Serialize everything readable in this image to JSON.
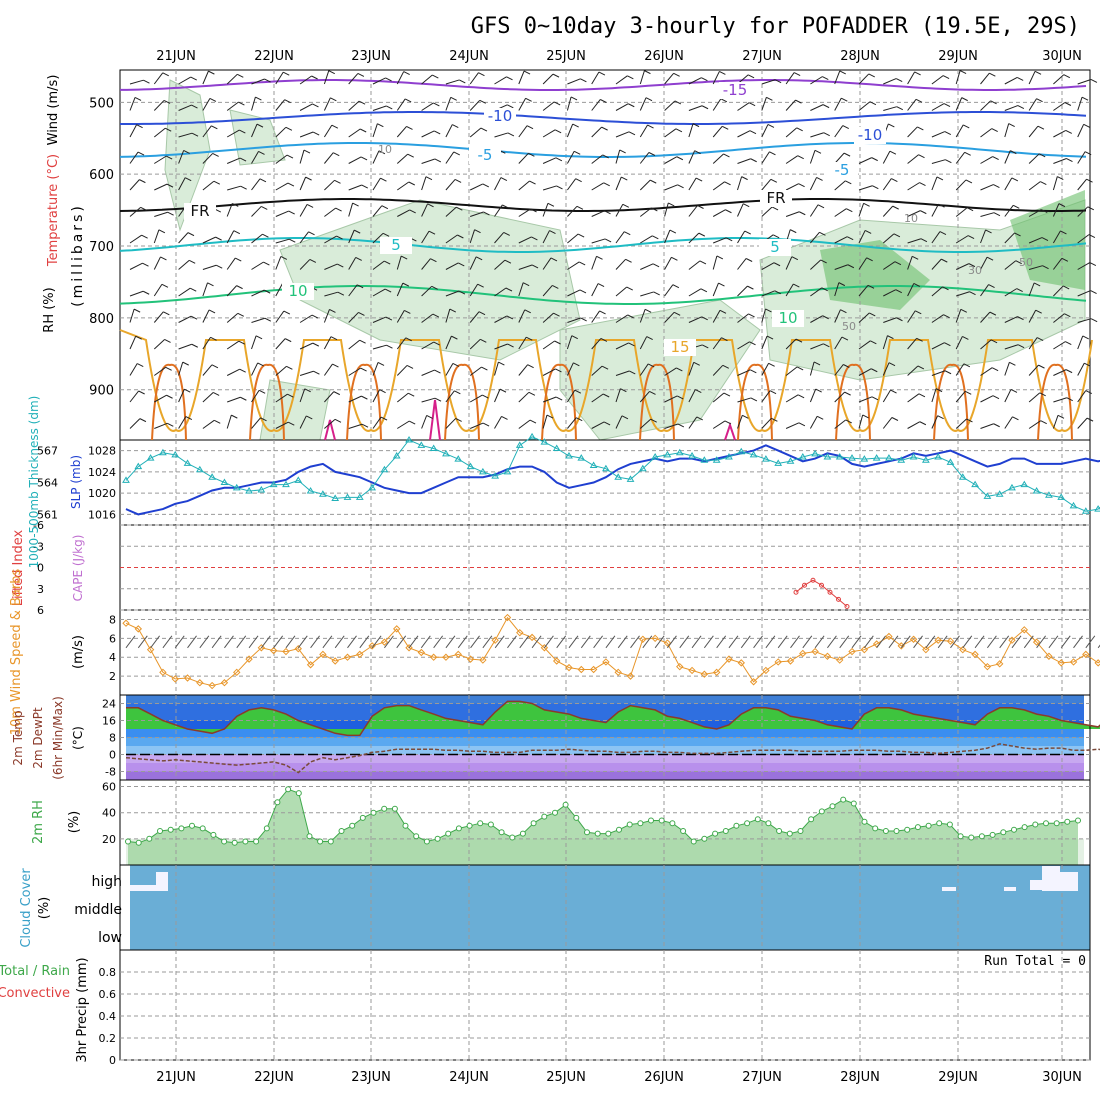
{
  "title": "GFS 0~10day 3-hourly for POFADDER (19.5E, 29S)",
  "dates": [
    "21JUN",
    "22JUN",
    "23JUN",
    "24JUN",
    "25JUN",
    "26JUN",
    "27JUN",
    "28JUN",
    "29JUN",
    "30JUN"
  ],
  "colors": {
    "frame": "#000000",
    "grid": "#9a9a9a",
    "slp": "#1f3fd0",
    "thick": "#21b0b8",
    "cape_li": "#e04040",
    "wind10": "#e8962a",
    "temp_line": "#8b3a2a",
    "dew_line": "#7a4a3a",
    "rh2m": "#3ea84a",
    "cloud_bg": "#6aaed6",
    "rh_shade": "#c9e4c9",
    "rh_dark": "#6dbf6d",
    "t_neg15": "#8f3fcf",
    "t_neg10": "#2c4fd6",
    "t_neg5": "#2a9fe0",
    "t_fr": "#111111",
    "t_5": "#1fbcc4",
    "t_10": "#22c27a",
    "t_15": "#e8a62a",
    "t_20": "#e07020",
    "t_25": "#d6208a"
  },
  "panels": {
    "upper": {
      "ylabel_wind": "Wind (m/s)",
      "ylabel_temp": "Temperature (°C)",
      "ylabel_rh": "RH (%)",
      "ylabel_mb": "(millibars)",
      "ticks": [
        "500",
        "600",
        "700",
        "800",
        "900"
      ],
      "contour_labels": [
        {
          "text": "-15",
          "color_key": "t_neg15"
        },
        {
          "text": "-10",
          "color_key": "t_neg10"
        },
        {
          "text": "-10",
          "color_key": "t_neg10"
        },
        {
          "text": "-5",
          "color_key": "t_neg5"
        },
        {
          "text": "-5",
          "color_key": "t_neg5"
        },
        {
          "text": "FR",
          "color_key": "t_fr"
        },
        {
          "text": "FR",
          "color_key": "t_fr"
        },
        {
          "text": "5",
          "color_key": "t_5"
        },
        {
          "text": "5",
          "color_key": "t_5"
        },
        {
          "text": "10",
          "color_key": "t_10"
        },
        {
          "text": "10",
          "color_key": "t_10"
        },
        {
          "text": "15",
          "color_key": "t_15"
        }
      ],
      "rh_labels": [
        "10",
        "10",
        "30",
        "50",
        "50"
      ]
    },
    "slp": {
      "ylabel_thick": "1000-500mb Thickness (dm)",
      "ylabel_slp": "SLP (mb)",
      "left_ticks": [
        "567",
        "564",
        "561"
      ],
      "right_ticks": [
        "1028",
        "1024",
        "1020",
        "1016"
      ]
    },
    "cape": {
      "ylabel_li": "Lifted Index",
      "ylabel_cape": "CAPE (J/kg)",
      "ticks": [
        "-6",
        "-3",
        "0",
        "3",
        "6"
      ]
    },
    "wind": {
      "ylabel": "10m Wind Speed & Barbs",
      "unit": "(m/s)",
      "ticks": [
        "8",
        "6",
        "4",
        "2"
      ]
    },
    "temp": {
      "ylabel_a": "2m Temp",
      "ylabel_b": "2m DewPt",
      "ylabel_c": "(6hr Min/Max)",
      "unit": "(°C)",
      "ticks": [
        "24",
        "16",
        "8",
        "0",
        "-8"
      ]
    },
    "rh": {
      "ylabel": "2m RH",
      "unit": "(%)",
      "ticks": [
        "60",
        "40",
        "20"
      ]
    },
    "cloud": {
      "ylabel": "Cloud Cover",
      "unit": "(%)",
      "levels": [
        "high",
        "middle",
        "low"
      ]
    },
    "precip": {
      "ylabel_a": "Total / Rain",
      "ylabel_b": "Convective",
      "ylabel_c": "3hr Precip (mm)",
      "run_total": "Run Total = 0",
      "ticks": [
        "0.8",
        "0.6",
        "0.4",
        "0.2",
        "0"
      ]
    }
  },
  "chart_data": [
    {
      "type": "line",
      "title": "SLP (mb) and 1000-500mb Thickness (dm)",
      "x_unit": "3-hourly steps from 20JUN 12Z",
      "series": [
        {
          "name": "SLP (mb)",
          "axis": "right",
          "values": [
            1017,
            1016,
            1016.5,
            1017,
            1018,
            1018.5,
            1019.5,
            1020.5,
            1021,
            1021,
            1021.5,
            1022,
            1022,
            1022.5,
            1024,
            1025,
            1025.5,
            1024,
            1023.5,
            1023,
            1022,
            1021,
            1020.5,
            1020,
            1020,
            1021,
            1022,
            1023,
            1023,
            1023,
            1023.5,
            1024.5,
            1025,
            1025,
            1024,
            1022,
            1021,
            1021.5,
            1022,
            1023,
            1024.5,
            1025.5,
            1026,
            1026.5,
            1026,
            1026.5,
            1026.5,
            1026,
            1026.5,
            1027,
            1027.5,
            1028,
            1029,
            1028,
            1027,
            1026,
            1026.5,
            1027.5,
            1027,
            1025.5,
            1025,
            1025.5,
            1026,
            1026.5,
            1027.5,
            1027,
            1027.5,
            1028,
            1027,
            1026,
            1025,
            1025.5,
            1026.5,
            1026.5,
            1025.5,
            1025.5,
            1025.5,
            1026,
            1026.5,
            1026,
            1026.5,
            1027.5,
            1026,
            1024,
            1022,
            1022,
            1022,
            1021,
            1020,
            1020,
            1020.5,
            1020,
            1019.5,
            1019,
            1019.5,
            1020
          ]
        },
        {
          "name": "1000-500mb Thickness (dm)",
          "axis": "left",
          "values": [
            564.2,
            565.5,
            566.3,
            566.8,
            566.6,
            565.8,
            565.2,
            564.5,
            564,
            563.5,
            563.2,
            563.3,
            563.8,
            563.8,
            564.2,
            563.2,
            562.9,
            562.5,
            562.6,
            562.6,
            563.5,
            565.2,
            566.5,
            568,
            567.5,
            567.2,
            566.7,
            566.2,
            565.5,
            565,
            564.6,
            565,
            567.5,
            568.3,
            567.8,
            567.2,
            566.5,
            566.3,
            565.6,
            565.3,
            564.5,
            564.3,
            565.3,
            566.4,
            566.6,
            566.8,
            566.5,
            566.1,
            566.1,
            566.4,
            566.9,
            566.6,
            566.2,
            565.8,
            566,
            566.4,
            566.7,
            566.4,
            566.4,
            566.3,
            566.2,
            566.3,
            566.3,
            566.1,
            566.4,
            566.1,
            566.4,
            565.9,
            564.5,
            563.8,
            562.7,
            562.9,
            563.5,
            563.8,
            563.2,
            562.8,
            562.6,
            561.8,
            561.3,
            561.5,
            562.5,
            563,
            563.7,
            563.4,
            563.2,
            563.2,
            563.6,
            563.4,
            562.8,
            562.9,
            562.8,
            563.2,
            563.8,
            564,
            563.9,
            563.2,
            562.3,
            561.6,
            561.1,
            561
          ]
        }
      ],
      "ylim_left": [
        560,
        568
      ],
      "ylim_right": [
        1014,
        1030
      ]
    },
    {
      "type": "line",
      "title": "10m Wind Speed & Barbs",
      "ylabel": "(m/s)",
      "series": [
        {
          "name": "10m Wind Speed",
          "values": [
            7.6,
            7,
            4.8,
            2.4,
            1.7,
            1.8,
            1.3,
            1,
            1.3,
            2.4,
            3.8,
            5,
            4.7,
            4.6,
            4.9,
            3.2,
            4.3,
            3.6,
            4,
            4.3,
            5.2,
            5.6,
            7,
            5,
            4.5,
            4,
            4,
            4.3,
            3.8,
            3.7,
            5.8,
            8.2,
            6.6,
            6.1,
            5,
            3.6,
            2.9,
            2.7,
            2.7,
            3.5,
            2.4,
            2,
            5.9,
            6,
            5.5,
            3,
            2.6,
            2.2,
            2.4,
            3.8,
            3.4,
            1.4,
            2.6,
            3.5,
            3.6,
            4.4,
            4.6,
            4.1,
            3.7,
            4.6,
            4.8,
            5.4,
            6.2,
            5.2,
            5.9,
            4.8,
            5.8,
            5.7,
            4.8,
            4.3,
            3,
            3.3,
            5.8,
            6.9,
            5.6,
            4.1,
            3.4,
            3.5,
            4.3,
            3.4,
            4.4,
            5.4,
            6.5,
            8.1,
            7.1,
            6.6,
            4.3,
            4.7,
            4.6,
            3.7,
            3.8,
            5.6,
            7.4,
            7.3,
            5.7,
            4.2,
            4.5,
            4,
            3.2,
            3.1,
            3.4
          ]
        }
      ],
      "ylim": [
        0,
        9
      ]
    },
    {
      "type": "area",
      "title": "2m Temp / 2m DewPt",
      "ylabel": "(°C)",
      "series": [
        {
          "name": "2m Temp",
          "values": [
            22,
            22,
            19,
            16,
            14,
            12,
            11,
            10,
            12,
            18,
            21,
            22,
            21,
            19,
            16,
            14,
            12,
            10,
            9,
            9,
            18,
            22,
            23,
            23,
            21,
            19,
            17,
            16,
            15,
            14,
            20,
            25,
            25,
            24,
            21,
            20,
            19,
            17,
            16,
            15,
            20,
            23,
            22,
            21,
            18,
            17,
            15,
            13,
            12,
            14,
            19,
            22,
            22,
            21,
            18,
            17,
            16,
            14,
            13,
            12,
            19,
            22,
            22,
            21,
            19,
            18,
            17,
            16,
            15,
            14,
            19,
            22,
            22,
            21,
            19,
            18,
            16,
            15,
            14,
            13,
            18,
            22,
            22,
            21,
            19,
            18,
            17,
            16,
            15,
            14,
            19,
            22,
            22,
            21,
            19,
            17,
            15,
            14,
            13,
            12
          ]
        },
        {
          "name": "2m DewPt",
          "values": [
            -1.5,
            -2,
            -2.5,
            -3,
            -2.5,
            -3,
            -3.5,
            -4,
            -4.5,
            -5,
            -4.5,
            -4,
            -3.5,
            -5,
            -8.5,
            -3.5,
            -1.5,
            -2.5,
            -1.5,
            -0.5,
            1,
            1.5,
            2.5,
            2.5,
            2.5,
            2.5,
            2,
            2,
            1.5,
            1.5,
            1,
            1,
            1,
            2,
            2,
            2,
            2.5,
            2,
            1.5,
            1.5,
            1,
            1,
            1.5,
            1.5,
            1,
            1,
            0.5,
            0.5,
            0.5,
            1,
            1.5,
            2,
            2,
            2,
            2,
            1.5,
            1.5,
            1.5,
            1.5,
            2,
            2,
            2,
            1.5,
            1.5,
            1,
            1,
            0.5,
            1,
            1.5,
            2,
            3,
            5,
            4,
            3,
            2.5,
            3,
            3,
            2,
            2,
            2.5,
            1.5,
            1,
            0.5,
            -0.5,
            -0.5,
            -0.5,
            -1,
            -1,
            -1,
            -1.5,
            -1.5,
            -1,
            -1.5,
            -1.5,
            -2,
            -2.5,
            -3,
            -3,
            -3.5,
            -3.5
          ]
        }
      ],
      "ylim": [
        -12,
        28
      ]
    },
    {
      "type": "area",
      "title": "2m RH",
      "ylabel": "(%)",
      "series": [
        {
          "name": "2m RH",
          "values": [
            18,
            17,
            20,
            26,
            27,
            28,
            30,
            28,
            23,
            18,
            17,
            18,
            18,
            28,
            48,
            58,
            55,
            22,
            18,
            18,
            26,
            30,
            36,
            40,
            43,
            43,
            30,
            22,
            18,
            20,
            24,
            28,
            30,
            32,
            31,
            25,
            21,
            24,
            32,
            37,
            40,
            46,
            36,
            25,
            24,
            24,
            27,
            31,
            32,
            34,
            34,
            32,
            26,
            18,
            20,
            24,
            26,
            30,
            32,
            35,
            32,
            26,
            24,
            26,
            35,
            41,
            45,
            50,
            47,
            33,
            28,
            26,
            26,
            27,
            29,
            30,
            32,
            31,
            22,
            21,
            22,
            23,
            25,
            27,
            29,
            31,
            32,
            32,
            33,
            34
          ]
        }
      ],
      "ylim": [
        0,
        65
      ]
    },
    {
      "type": "line",
      "title": "Lifted Index / CAPE",
      "series": [
        {
          "name": "Lifted Index",
          "values": [
            3.5,
            2.5,
            1.8,
            2.5,
            3.5,
            4.5,
            5.5
          ]
        }
      ],
      "ylim": [
        6,
        -6
      ]
    },
    {
      "type": "bar",
      "title": "3hr Precip (mm)",
      "series": [
        {
          "name": "3hr Precip",
          "values": [
            0,
            0,
            0,
            0,
            0,
            0,
            0,
            0,
            0,
            0
          ]
        }
      ],
      "ylim": [
        0,
        1
      ]
    }
  ]
}
